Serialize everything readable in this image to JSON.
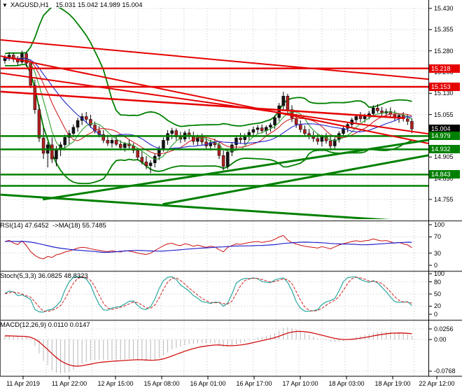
{
  "window": {
    "collapse_icon": "▼",
    "symbol_timeframe": "XAGUSD,H1",
    "ohlc_text": "15.031 15.042 14.989 15.004"
  },
  "colors": {
    "bull": "#141414",
    "bear": "#b02020",
    "wick": "#000000",
    "bb": "#008000",
    "sma_fast": "#2ca02c",
    "sma_mid": "#cc2222",
    "sma_slow": "#2222cc",
    "trend_red": "#e60000",
    "trend_green": "#008000",
    "rsi": "#cc1111",
    "rsi_ma": "#2222cc",
    "stoch_k": "#2aa8a0",
    "stoch_d": "#d02020",
    "macd_hist": "#b8b8b8",
    "macd_signal": "#d01010",
    "grid": "#c4c4c4",
    "separator": "#555555",
    "badge_resistance": "#e60000",
    "badge_support": "#008000",
    "badge_current": "#000000"
  },
  "chart_data": {
    "type": "candlestick",
    "symbol": "XAGUSD",
    "timeframe": "H1",
    "last_ohlc": {
      "open": 15.031,
      "high": 15.042,
      "low": 14.989,
      "close": 15.004
    },
    "xlabels": [
      "11 Apr 2019",
      "11 Apr 22:00",
      "12 Apr 15:00",
      "15 Apr 08:00",
      "16 Apr 01:00",
      "16 Apr 17:00",
      "17 Apr 10:00",
      "18 Apr 03:00",
      "18 Apr 19:00",
      "22 Apr 12:00"
    ],
    "main": {
      "ylim": [
        14.688,
        15.43
      ],
      "yticks": [
        "15.430",
        "15.355",
        "15.280",
        "15.205",
        "15.130",
        "15.055",
        "14.980",
        "14.905",
        "14.830",
        "14.755"
      ],
      "ytick_values": [
        15.43,
        15.355,
        15.28,
        15.205,
        15.13,
        15.055,
        14.98,
        14.905,
        14.83,
        14.755
      ],
      "badges": [
        {
          "label": "15.218",
          "price": 15.218,
          "type": "resistance"
        },
        {
          "label": "15.153",
          "price": 15.153,
          "type": "resistance"
        },
        {
          "label": "15.004",
          "price": 15.004,
          "type": "current"
        },
        {
          "label": "14.979",
          "price": 14.979,
          "type": "support"
        },
        {
          "label": "14.932",
          "price": 14.932,
          "type": "support"
        },
        {
          "label": "14.843",
          "price": 14.843,
          "type": "support"
        }
      ],
      "hlines": [
        {
          "price": 15.218,
          "color": "red",
          "w": 2.5
        },
        {
          "price": 15.153,
          "color": "red",
          "w": 2.5
        },
        {
          "price": 14.979,
          "color": "green",
          "w": 2.5
        },
        {
          "price": 14.932,
          "color": "green",
          "w": 2.5
        },
        {
          "price": 14.843,
          "color": "green",
          "w": 2.5
        },
        {
          "price": 14.803,
          "color": "green",
          "w": 2.5
        }
      ],
      "trendlines": [
        {
          "x1": 0,
          "p1": 15.319,
          "x2": 1,
          "p2": 15.18,
          "color": "red",
          "w": 2
        },
        {
          "x1": 0,
          "p1": 15.262,
          "x2": 1,
          "p2": 14.953,
          "color": "red",
          "w": 2
        },
        {
          "x1": 0,
          "p1": 15.136,
          "x2": 0.945,
          "p2": 15.042,
          "color": "red",
          "w": 2.5
        },
        {
          "x1": 0,
          "p1": 15.202,
          "x2": 1,
          "p2": 14.987,
          "color": "red",
          "w": 2
        },
        {
          "x1": 0.1,
          "p1": 14.755,
          "x2": 1,
          "p2": 14.965,
          "color": "green",
          "w": 3
        },
        {
          "x1": 0.38,
          "p1": 14.738,
          "x2": 1,
          "p2": 14.911,
          "color": "green",
          "w": 3
        },
        {
          "x1": 0,
          "p1": 14.772,
          "x2": 1,
          "p2": 14.673,
          "color": "green",
          "w": 3
        }
      ],
      "indicators": {
        "bollinger": {
          "period": 20,
          "deviation": 2
        },
        "sma_periods": [
          6,
          10,
          16
        ]
      },
      "warmup_closes": [
        15.21,
        15.222,
        15.235,
        15.226,
        15.24,
        15.25,
        15.246,
        15.236,
        15.226,
        15.24,
        15.254,
        15.262,
        15.25,
        15.24,
        15.23,
        15.244,
        15.26,
        15.27,
        15.256,
        15.246,
        15.25,
        15.26,
        15.256,
        15.25
      ],
      "candles": [
        [
          15.245,
          15.265,
          15.235,
          15.255
        ],
        [
          15.255,
          15.275,
          15.245,
          15.265
        ],
        [
          15.265,
          15.272,
          15.24,
          15.25
        ],
        [
          15.25,
          15.262,
          15.228,
          15.24
        ],
        [
          15.24,
          15.28,
          15.235,
          15.27
        ],
        [
          15.27,
          15.276,
          15.224,
          15.236
        ],
        [
          15.236,
          15.24,
          15.148,
          15.158
        ],
        [
          15.158,
          15.178,
          15.058,
          15.072
        ],
        [
          15.072,
          15.09,
          14.958,
          14.972
        ],
        [
          14.972,
          15.008,
          14.898,
          14.918
        ],
        [
          14.918,
          14.958,
          14.868,
          14.948
        ],
        [
          14.948,
          14.974,
          14.884,
          14.898
        ],
        [
          14.898,
          14.944,
          14.872,
          14.934
        ],
        [
          14.934,
          14.958,
          14.908,
          14.948
        ],
        [
          14.948,
          14.984,
          14.934,
          14.974
        ],
        [
          14.974,
          15.0,
          14.95,
          14.988
        ],
        [
          14.988,
          15.02,
          14.974,
          15.01
        ],
        [
          15.01,
          15.044,
          14.994,
          15.034
        ],
        [
          15.034,
          15.06,
          15.018,
          15.048
        ],
        [
          15.048,
          15.064,
          15.024,
          15.038
        ],
        [
          15.038,
          15.054,
          15.008,
          15.018
        ],
        [
          15.018,
          15.03,
          14.988,
          14.998
        ],
        [
          14.998,
          15.014,
          14.974,
          14.984
        ],
        [
          14.984,
          15.0,
          14.954,
          14.964
        ],
        [
          14.964,
          14.984,
          14.944,
          14.954
        ],
        [
          14.954,
          14.974,
          14.938,
          14.964
        ],
        [
          14.964,
          14.98,
          14.944,
          14.95
        ],
        [
          14.95,
          14.964,
          14.928,
          14.938
        ],
        [
          14.938,
          14.958,
          14.924,
          14.952
        ],
        [
          14.952,
          14.968,
          14.934,
          14.944
        ],
        [
          14.944,
          14.954,
          14.918,
          14.928
        ],
        [
          14.928,
          14.938,
          14.894,
          14.904
        ],
        [
          14.904,
          14.924,
          14.878,
          14.888
        ],
        [
          14.888,
          14.908,
          14.862,
          14.874
        ],
        [
          14.874,
          14.894,
          14.848,
          14.884
        ],
        [
          14.884,
          14.918,
          14.868,
          14.908
        ],
        [
          14.908,
          14.944,
          14.894,
          14.934
        ],
        [
          14.934,
          14.974,
          14.924,
          14.964
        ],
        [
          14.964,
          15.0,
          14.948,
          14.988
        ],
        [
          14.988,
          15.008,
          14.968,
          14.998
        ],
        [
          14.998,
          15.006,
          14.964,
          14.976
        ],
        [
          14.976,
          14.994,
          14.954,
          14.968
        ],
        [
          14.968,
          14.998,
          14.958,
          14.99
        ],
        [
          14.99,
          15.004,
          14.968,
          14.98
        ],
        [
          14.98,
          14.994,
          14.948,
          14.96
        ],
        [
          14.96,
          14.984,
          14.944,
          14.974
        ],
        [
          14.974,
          14.988,
          14.948,
          14.958
        ],
        [
          14.958,
          14.974,
          14.934,
          14.944
        ],
        [
          14.944,
          14.966,
          14.928,
          14.956
        ],
        [
          14.956,
          14.97,
          14.938,
          14.948
        ],
        [
          14.948,
          14.96,
          14.898,
          14.91
        ],
        [
          14.91,
          14.928,
          14.858,
          14.872
        ],
        [
          14.872,
          14.932,
          14.862,
          14.922
        ],
        [
          14.922,
          14.958,
          14.908,
          14.948
        ],
        [
          14.948,
          14.982,
          14.932,
          14.972
        ],
        [
          14.972,
          14.99,
          14.952,
          14.966
        ],
        [
          14.966,
          14.988,
          14.948,
          14.98
        ],
        [
          14.98,
          15.002,
          14.966,
          14.992
        ],
        [
          14.992,
          15.012,
          14.978,
          15.002
        ],
        [
          15.002,
          15.018,
          14.986,
          15.008
        ],
        [
          15.008,
          15.02,
          14.988,
          14.998
        ],
        [
          14.998,
          15.016,
          14.984,
          15.01
        ],
        [
          15.01,
          15.026,
          14.994,
          15.018
        ],
        [
          15.018,
          15.052,
          15.004,
          15.044
        ],
        [
          15.044,
          15.096,
          15.032,
          15.086
        ],
        [
          15.086,
          15.135,
          15.07,
          15.12
        ],
        [
          15.12,
          15.128,
          15.058,
          15.072
        ],
        [
          15.072,
          15.088,
          15.028,
          15.042
        ],
        [
          15.042,
          15.058,
          15.008,
          15.02
        ],
        [
          15.02,
          15.034,
          14.992,
          15.002
        ],
        [
          15.002,
          15.016,
          14.978,
          14.988
        ],
        [
          14.988,
          15.004,
          14.968,
          14.978
        ],
        [
          14.978,
          14.996,
          14.958,
          14.97
        ],
        [
          14.97,
          14.988,
          14.948,
          14.96
        ],
        [
          14.96,
          14.984,
          14.942,
          14.976
        ],
        [
          14.976,
          14.99,
          14.952,
          14.962
        ],
        [
          14.962,
          14.978,
          14.928,
          14.944
        ],
        [
          14.944,
          14.974,
          14.934,
          14.966
        ],
        [
          14.966,
          14.996,
          14.956,
          14.988
        ],
        [
          14.988,
          15.014,
          14.978,
          15.006
        ],
        [
          15.006,
          15.028,
          14.992,
          15.02
        ],
        [
          15.02,
          15.044,
          15.008,
          15.036
        ],
        [
          15.036,
          15.056,
          15.022,
          15.048
        ],
        [
          15.048,
          15.064,
          15.028,
          15.04
        ],
        [
          15.04,
          15.058,
          15.026,
          15.05
        ],
        [
          15.05,
          15.068,
          15.038,
          15.058
        ],
        [
          15.058,
          15.088,
          15.046,
          15.078
        ],
        [
          15.078,
          15.092,
          15.06,
          15.068
        ],
        [
          15.068,
          15.082,
          15.05,
          15.06
        ],
        [
          15.06,
          15.076,
          15.044,
          15.066
        ],
        [
          15.066,
          15.08,
          15.048,
          15.056
        ],
        [
          15.056,
          15.07,
          15.034,
          15.044
        ],
        [
          15.044,
          15.06,
          15.026,
          15.052
        ],
        [
          15.052,
          15.064,
          15.03,
          15.04
        ],
        [
          15.04,
          15.056,
          15.018,
          15.031
        ],
        [
          15.031,
          15.042,
          14.989,
          15.004
        ]
      ]
    },
    "rsi": {
      "label": "RSI(14) 47.6452  ->MA(18) 55.7485",
      "period": 14,
      "ma_period": 18,
      "value": 47.6452,
      "ma_value": 55.7485,
      "yticks": [
        "100",
        "70",
        "30",
        "0"
      ],
      "ytick_values": [
        100,
        70,
        30,
        0
      ],
      "levels": [
        70,
        30
      ],
      "range": [
        0,
        100
      ]
    },
    "stoch": {
      "label": "Stoch(5,3,3) 36.0825 48.8323",
      "k_period": 5,
      "d_period": 3,
      "slowing": 3,
      "k_value": 36.0825,
      "d_value": 48.8323,
      "yticks": [
        "100",
        "80",
        "50",
        "20",
        "0"
      ],
      "ytick_values": [
        100,
        80,
        50,
        20,
        0
      ],
      "levels": [
        80,
        50,
        20
      ],
      "range": [
        0,
        100
      ]
    },
    "macd": {
      "label": "MACD(12,26,9) 0.0110 0.0147",
      "fast": 12,
      "slow": 26,
      "signal": 9,
      "value": 0.011,
      "signal_value": 0.0147,
      "yticks": [
        "0.0256",
        "0.00",
        "-0.0768"
      ],
      "ytick_values": [
        0.0256,
        0.0,
        -0.0768
      ]
    }
  }
}
